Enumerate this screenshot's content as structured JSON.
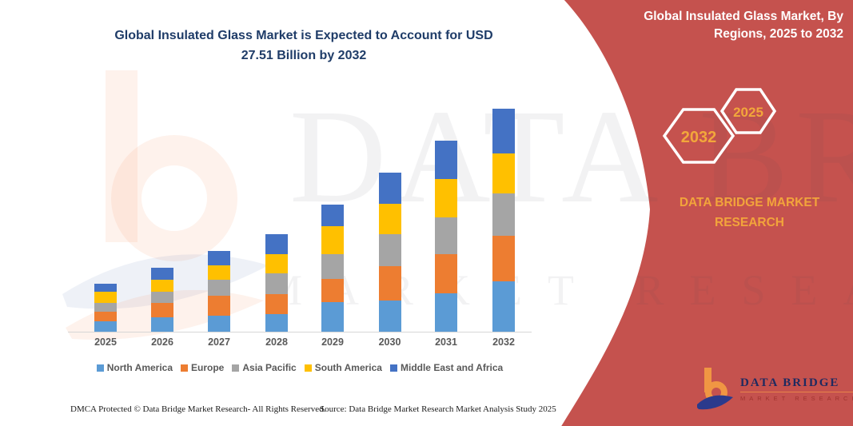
{
  "header": {
    "title_line1": "Global Insulated Glass Market is Expected to Account for USD",
    "title_line2": "27.51 Billion by 2032",
    "title_color": "#1F3C68"
  },
  "side_panel": {
    "title_line1": "Global Insulated Glass Market, By",
    "title_line2": "Regions, 2025 to 2032",
    "background_color": "#C5524E",
    "accent_color": "#F2A73B",
    "hexagons": [
      {
        "label": "2032"
      },
      {
        "label": "2025"
      }
    ],
    "brand_line1": "DATA BRIDGE MARKET",
    "brand_line2": "RESEARCH"
  },
  "chart_data": {
    "type": "bar",
    "stacked": true,
    "title": "Global Insulated Glass Market is Expected to Account for USD 27.51 Billion by 2032",
    "unit": "USD Billion",
    "categories": [
      "2025",
      "2026",
      "2027",
      "2028",
      "2029",
      "2030",
      "2031",
      "2032"
    ],
    "series": [
      {
        "name": "North America",
        "color": "#5B9BD5",
        "values": [
          1.28,
          1.78,
          1.97,
          2.14,
          3.62,
          3.85,
          4.76,
          6.21
        ]
      },
      {
        "name": "Europe",
        "color": "#ED7D31",
        "values": [
          1.17,
          1.8,
          2.47,
          2.47,
          2.86,
          4.27,
          4.77,
          5.62
        ]
      },
      {
        "name": "Asia Pacific",
        "color": "#A5A5A5",
        "values": [
          1.08,
          1.3,
          1.97,
          2.62,
          3.06,
          3.89,
          4.6,
          5.23
        ]
      },
      {
        "name": "South America",
        "color": "#FFC000",
        "values": [
          1.35,
          1.48,
          1.8,
          2.31,
          3.45,
          3.78,
          4.67,
          4.96
        ]
      },
      {
        "name": "Middle East and Africa",
        "color": "#4472C4",
        "values": [
          1.07,
          1.55,
          1.75,
          2.47,
          2.69,
          3.85,
          4.76,
          5.49
        ]
      }
    ],
    "totals": [
      5.95,
      7.91,
      9.96,
      12.01,
      15.68,
      19.64,
      23.56,
      27.51
    ],
    "ylim": [
      0,
      28
    ],
    "xlabel": "",
    "ylabel": "",
    "gridlines": false,
    "legend_position": "bottom"
  },
  "watermark": {
    "line1": "DATA BRIDGE",
    "line2": "MARKET RESEARCH"
  },
  "footer": {
    "dmca": "DMCA Protected © Data Bridge Market Research-  All Rights Reserved.",
    "source": "Source: Data Bridge Market Research  Market Analysis Study 2025"
  },
  "logo": {
    "name": "DATA BRIDGE",
    "subtitle": "MARKET RESEARCH"
  }
}
